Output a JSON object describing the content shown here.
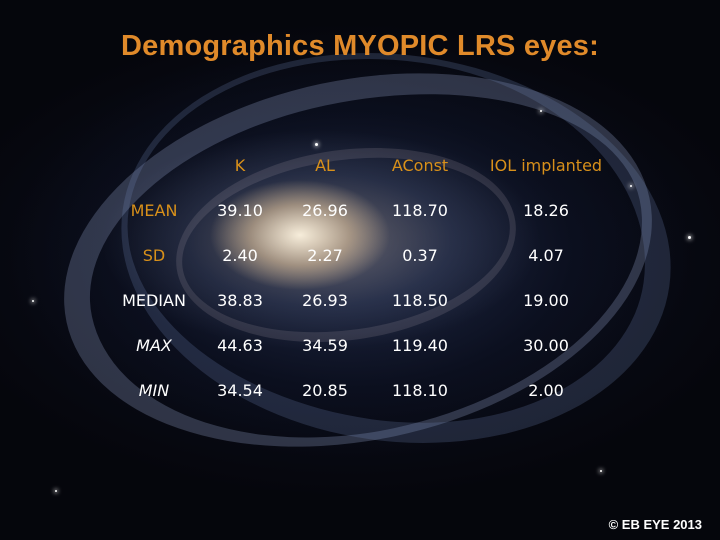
{
  "slide": {
    "title": "Demographics MYOPIC LRS eyes:",
    "copyright": "© EB EYE 2013",
    "accent_color": "#e08a2a",
    "text_color": "#ffffff"
  },
  "table": {
    "headers": [
      "",
      "K",
      "AL",
      "AConst",
      "IOL implanted"
    ],
    "rows": [
      {
        "label": "MEAN",
        "values": [
          "39.10",
          "26.96",
          "118.70",
          "18.26"
        ]
      },
      {
        "label": "SD",
        "values": [
          "2.40",
          "2.27",
          "0.37",
          "4.07"
        ]
      },
      {
        "label": "MEDIAN",
        "values": [
          "38.83",
          "26.93",
          "118.50",
          "19.00"
        ]
      },
      {
        "label": "MAX",
        "values": [
          "44.63",
          "34.59",
          "119.40",
          "30.00"
        ]
      },
      {
        "label": "MIN",
        "values": [
          "34.54",
          "20.85",
          "118.10",
          "2.00"
        ]
      }
    ]
  }
}
